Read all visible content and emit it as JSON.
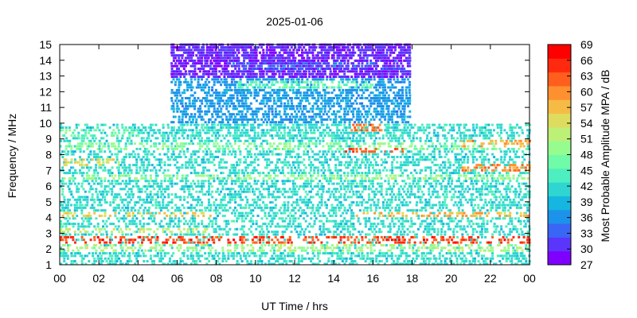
{
  "chart_data": {
    "type": "heatmap",
    "title": "2025-01-06",
    "xlabel": "UT Time / hrs",
    "ylabel": "Frequency / MHz",
    "xlim": [
      0,
      24
    ],
    "ylim": [
      1,
      15
    ],
    "x_tick_labels": [
      "00",
      "02",
      "04",
      "06",
      "08",
      "10",
      "12",
      "14",
      "16",
      "18",
      "20",
      "22",
      "00"
    ],
    "y_tick_labels": [
      "1",
      "2",
      "3",
      "4",
      "5",
      "6",
      "7",
      "8",
      "9",
      "10",
      "11",
      "12",
      "13",
      "14",
      "15"
    ],
    "colorbar": {
      "label": "Most Probable Amplitude MPA / dB",
      "range": [
        27,
        69
      ],
      "tick_labels": [
        "69",
        "66",
        "63",
        "60",
        "57",
        "54",
        "51",
        "48",
        "45",
        "42",
        "39",
        "36",
        "33",
        "30",
        "27"
      ],
      "colors": [
        "#7f00ff",
        "#5b35fc",
        "#3a66f5",
        "#1c92ea",
        "#15b6df",
        "#2fd6d1",
        "#4deebf",
        "#70fba8",
        "#97fc8f",
        "#bdf076",
        "#dedc5e",
        "#f6bb45",
        "#ff9030",
        "#ff5e1d",
        "#ff2a0e",
        "#ff0000"
      ]
    },
    "coverage_regions": [
      {
        "x": [
          0,
          5.6
        ],
        "freq_max_mhz": 10.0
      },
      {
        "x": [
          5.6,
          8.6
        ],
        "freq_max_mhz": 15.0
      },
      {
        "x": [
          8.6,
          17.9
        ],
        "freq_max_mhz": 15.0
      },
      {
        "x": [
          17.9,
          24
        ],
        "freq_max_mhz": 10.0
      }
    ],
    "bands": [
      {
        "x": [
          0,
          24
        ],
        "freq_mhz": 2.6,
        "amplitude_db": 64
      },
      {
        "x": [
          0,
          24
        ],
        "freq_mhz": 2.1,
        "amplitude_db": 50
      },
      {
        "x": [
          0,
          7.8
        ],
        "freq_mhz": 3.2,
        "amplitude_db": 52
      },
      {
        "x": [
          0,
          7.8
        ],
        "freq_mhz": 4.2,
        "amplitude_db": 56
      },
      {
        "x": [
          15.0,
          24
        ],
        "freq_mhz": 4.2,
        "amplitude_db": 57
      },
      {
        "x": [
          0,
          24
        ],
        "freq_mhz": 6.6,
        "amplitude_db": 49
      },
      {
        "x": [
          0,
          3.0
        ],
        "freq_mhz": 7.5,
        "amplitude_db": 55
      },
      {
        "x": [
          20.5,
          24
        ],
        "freq_mhz": 7.2,
        "amplitude_db": 60
      },
      {
        "x": [
          0,
          24
        ],
        "freq_mhz": 8.5,
        "amplitude_db": 48
      },
      {
        "x": [
          20.5,
          24
        ],
        "freq_mhz": 8.7,
        "amplitude_db": 58
      },
      {
        "x": [
          14.5,
          17.5
        ],
        "freq_mhz": 8.3,
        "amplitude_db": 63
      },
      {
        "x": [
          14.8,
          16.5
        ],
        "freq_mhz": 9.7,
        "amplitude_db": 61
      },
      {
        "x": [
          0,
          4.0
        ],
        "freq_mhz": 9.4,
        "amplitude_db": 46
      },
      {
        "x": [
          9.0,
          16.0
        ],
        "freq_mhz": 12.4,
        "amplitude_db": 45
      },
      {
        "x": [
          8.6,
          17.9
        ],
        "freq_mhz": 13.6,
        "amplitude_db": 32
      },
      {
        "x": [
          5.6,
          8.6
        ],
        "freq_mhz": 13.8,
        "amplitude_db": 29
      },
      {
        "x": [
          16.5,
          17.9
        ],
        "freq_mhz": 13.8,
        "amplitude_db": 29
      }
    ]
  }
}
